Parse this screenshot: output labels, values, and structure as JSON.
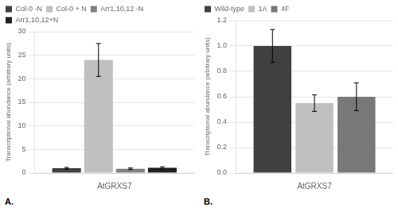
{
  "chart_data": [
    {
      "type": "bar",
      "categories": [
        "AtGRXS7"
      ],
      "series": [
        {
          "name": "Col-0 -N",
          "color": "#404040",
          "values": [
            1.0
          ],
          "errors": [
            0.18
          ]
        },
        {
          "name": "Col-0 + N",
          "color": "#c0c0c0",
          "values": [
            24.0
          ],
          "errors": [
            3.5
          ]
        },
        {
          "name": "Arr1,10,12 -N",
          "color": "#808080",
          "values": [
            0.9
          ],
          "errors": [
            0.15
          ]
        },
        {
          "name": "Arr1,10,12+N",
          "color": "#202020",
          "values": [
            1.1
          ],
          "errors": [
            0.2
          ]
        }
      ],
      "ylabel": "Transcriptional abundance (arbitrary units)",
      "ylim": [
        0,
        30
      ],
      "yticks": [
        0,
        5,
        10,
        15,
        20,
        25,
        30
      ],
      "grid": true,
      "legend": "upper left",
      "annotations": [
        "A."
      ]
    },
    {
      "type": "bar",
      "categories": [
        "AtGRXS7"
      ],
      "series": [
        {
          "name": "Wild-type",
          "color": "#404040",
          "values": [
            1.0
          ],
          "errors": [
            0.13
          ]
        },
        {
          "name": "1A",
          "color": "#c0c0c0",
          "values": [
            0.55
          ],
          "errors": [
            0.065
          ]
        },
        {
          "name": "4F",
          "color": "#787878",
          "values": [
            0.6
          ],
          "errors": [
            0.11
          ]
        }
      ],
      "ylabel": "Transcriptional abundance (arbitrary units)",
      "ylim": [
        0,
        1.2
      ],
      "yticks": [
        {
          "value": 0,
          "label": "0.0"
        },
        0.2,
        0.4,
        0.6,
        0.8,
        {
          "value": 1.0,
          "label": "1.0"
        },
        1.2
      ],
      "grid": true,
      "legend": "upper left",
      "annotations": [
        "B."
      ]
    }
  ]
}
